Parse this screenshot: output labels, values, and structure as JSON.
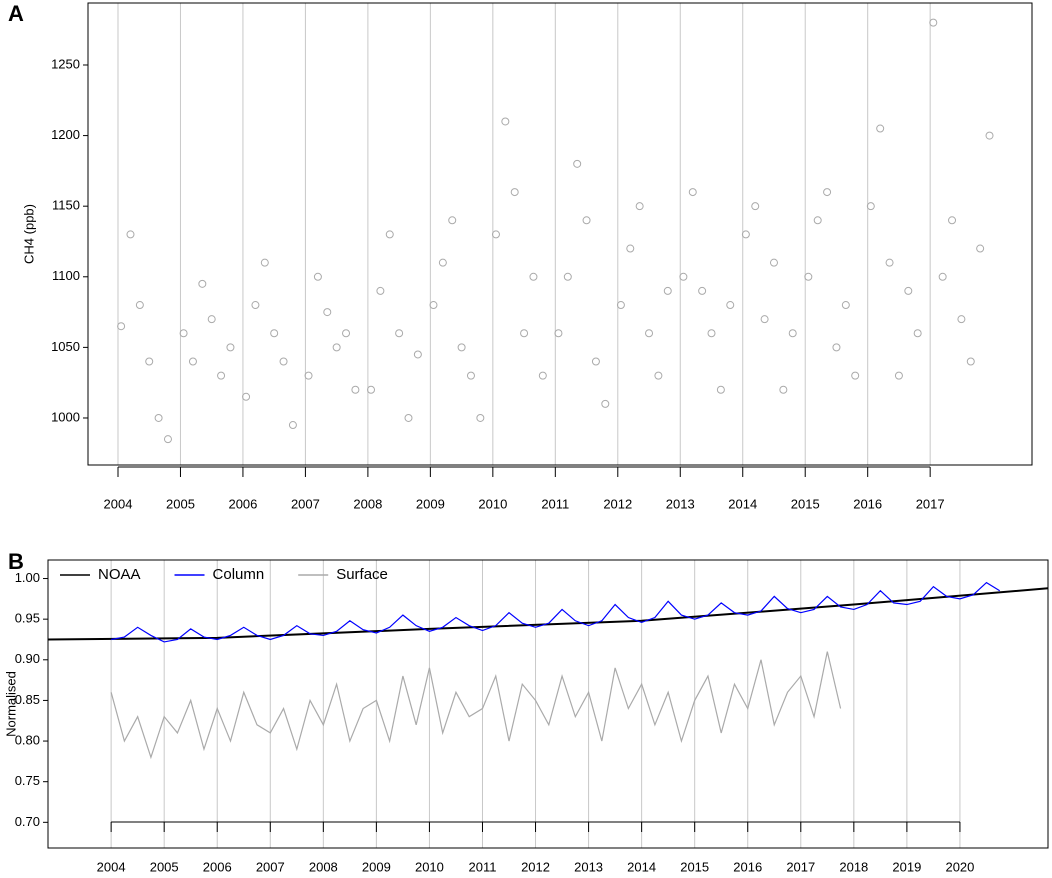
{
  "chart_data": [
    {
      "type": "scatter",
      "panel_label": "A",
      "y_label": "CH4 (ppb)",
      "color": "#aaaaaa",
      "grid": true,
      "xlim": [
        2003.52,
        2018.63
      ],
      "ylim": [
        966.7,
        1293.9
      ],
      "xticks": [
        2004,
        2005,
        2006,
        2007,
        2008,
        2009,
        2010,
        2011,
        2012,
        2013,
        2014,
        2015,
        2016,
        2017
      ],
      "yticks": [
        1000,
        1050,
        1100,
        1150,
        1200,
        1250
      ],
      "x": [
        2004.05,
        2004.2,
        2004.35,
        2004.5,
        2004.65,
        2004.8,
        2005.05,
        2005.2,
        2005.35,
        2005.5,
        2005.65,
        2005.8,
        2006.05,
        2006.2,
        2006.35,
        2006.5,
        2006.65,
        2006.8,
        2007.05,
        2007.2,
        2007.35,
        2007.5,
        2007.65,
        2007.8,
        2008.05,
        2008.2,
        2008.35,
        2008.5,
        2008.65,
        2008.8,
        2009.05,
        2009.2,
        2009.35,
        2009.5,
        2009.65,
        2009.8,
        2010.05,
        2010.2,
        2010.35,
        2010.5,
        2010.65,
        2010.8,
        2011.05,
        2011.2,
        2011.35,
        2011.5,
        2011.65,
        2011.8,
        2012.05,
        2012.2,
        2012.35,
        2012.5,
        2012.65,
        2012.8,
        2013.05,
        2013.2,
        2013.35,
        2013.5,
        2013.65,
        2013.8,
        2014.05,
        2014.2,
        2014.35,
        2014.5,
        2014.65,
        2014.8,
        2015.05,
        2015.2,
        2015.35,
        2015.5,
        2015.65,
        2015.8,
        2016.05,
        2016.2,
        2016.35,
        2016.5,
        2016.65,
        2016.8,
        2017.05,
        2017.2,
        2017.35,
        2017.5,
        2017.65,
        2017.8,
        2017.95
      ],
      "values": [
        1065,
        1130,
        1080,
        1040,
        1000,
        985,
        1060,
        1040,
        1095,
        1070,
        1030,
        1050,
        1015,
        1080,
        1110,
        1060,
        1040,
        995,
        1030,
        1100,
        1075,
        1050,
        1060,
        1020,
        1020,
        1090,
        1130,
        1060,
        1000,
        1045,
        1080,
        1110,
        1140,
        1050,
        1030,
        1000,
        1130,
        1210,
        1160,
        1060,
        1100,
        1030,
        1060,
        1100,
        1180,
        1140,
        1040,
        1010,
        1080,
        1120,
        1150,
        1060,
        1030,
        1090,
        1100,
        1160,
        1090,
        1060,
        1020,
        1080,
        1130,
        1150,
        1070,
        1110,
        1020,
        1060,
        1100,
        1140,
        1160,
        1050,
        1080,
        1030,
        1150,
        1205,
        1110,
        1030,
        1090,
        1060,
        1280,
        1100,
        1140,
        1070,
        1040,
        1120,
        1200
      ]
    },
    {
      "type": "line",
      "panel_label": "B",
      "y_label": "Normalised",
      "grid": true,
      "legend": "top-left",
      "xlim": [
        2002.81,
        2021.66
      ],
      "ylim": [
        0.6684,
        1.0228
      ],
      "xticks": [
        2004,
        2005,
        2006,
        2007,
        2008,
        2009,
        2010,
        2011,
        2012,
        2013,
        2014,
        2015,
        2016,
        2017,
        2018,
        2019,
        2020
      ],
      "yticks": [
        {
          "value": 0.7,
          "label": "0.70"
        },
        0.75,
        {
          "value": 0.8,
          "label": "0.80"
        },
        0.85,
        {
          "value": 0.9,
          "label": "0.90"
        },
        0.95,
        {
          "value": 1,
          "label": "1.00"
        }
      ],
      "series": [
        {
          "name": "NOAA",
          "color": "#000000",
          "x": [
            2002.81,
            2006,
            2010,
            2014,
            2018,
            2021.66
          ],
          "values": [
            0.925,
            0.927,
            0.938,
            0.948,
            0.968,
            0.988
          ]
        },
        {
          "name": "Column",
          "color": "#0000ff",
          "x": [
            2004,
            2004.25,
            2004.5,
            2004.75,
            2005,
            2005.25,
            2005.5,
            2005.75,
            2006,
            2006.25,
            2006.5,
            2006.75,
            2007,
            2007.25,
            2007.5,
            2007.75,
            2008,
            2008.25,
            2008.5,
            2008.75,
            2009,
            2009.25,
            2009.5,
            2009.75,
            2010,
            2010.25,
            2010.5,
            2010.75,
            2011,
            2011.25,
            2011.5,
            2011.75,
            2012,
            2012.25,
            2012.5,
            2012.75,
            2013,
            2013.25,
            2013.5,
            2013.75,
            2014,
            2014.25,
            2014.5,
            2014.75,
            2015,
            2015.25,
            2015.5,
            2015.75,
            2016,
            2016.25,
            2016.5,
            2016.75,
            2017,
            2017.25,
            2017.5,
            2017.75,
            2018,
            2018.25,
            2018.5,
            2018.75,
            2019,
            2019.25,
            2019.5,
            2019.75,
            2020,
            2020.25,
            2020.5,
            2020.75
          ],
          "values": [
            0.925,
            0.928,
            0.94,
            0.93,
            0.922,
            0.925,
            0.938,
            0.928,
            0.925,
            0.93,
            0.94,
            0.93,
            0.925,
            0.93,
            0.942,
            0.932,
            0.93,
            0.935,
            0.948,
            0.937,
            0.933,
            0.94,
            0.955,
            0.942,
            0.935,
            0.94,
            0.952,
            0.942,
            0.936,
            0.942,
            0.958,
            0.945,
            0.94,
            0.945,
            0.962,
            0.948,
            0.942,
            0.948,
            0.968,
            0.952,
            0.946,
            0.952,
            0.972,
            0.955,
            0.95,
            0.955,
            0.97,
            0.958,
            0.955,
            0.96,
            0.978,
            0.963,
            0.958,
            0.962,
            0.978,
            0.965,
            0.962,
            0.968,
            0.985,
            0.97,
            0.968,
            0.972,
            0.99,
            0.978,
            0.975,
            0.98,
            0.995,
            0.985
          ]
        },
        {
          "name": "Surface",
          "color": "#aaaaaa",
          "x": [
            2004,
            2004.25,
            2004.5,
            2004.75,
            2005,
            2005.25,
            2005.5,
            2005.75,
            2006,
            2006.25,
            2006.5,
            2006.75,
            2007,
            2007.25,
            2007.5,
            2007.75,
            2008,
            2008.25,
            2008.5,
            2008.75,
            2009,
            2009.25,
            2009.5,
            2009.75,
            2010,
            2010.25,
            2010.5,
            2010.75,
            2011,
            2011.25,
            2011.5,
            2011.75,
            2012,
            2012.25,
            2012.5,
            2012.75,
            2013,
            2013.25,
            2013.5,
            2013.75,
            2014,
            2014.25,
            2014.5,
            2014.75,
            2015,
            2015.25,
            2015.5,
            2015.75,
            2016,
            2016.25,
            2016.5,
            2016.75,
            2017,
            2017.25,
            2017.5,
            2017.75
          ],
          "values": [
            0.86,
            0.8,
            0.83,
            0.78,
            0.83,
            0.81,
            0.85,
            0.79,
            0.84,
            0.8,
            0.86,
            0.82,
            0.81,
            0.84,
            0.79,
            0.85,
            0.82,
            0.87,
            0.8,
            0.84,
            0.85,
            0.8,
            0.88,
            0.82,
            0.89,
            0.81,
            0.86,
            0.83,
            0.84,
            0.88,
            0.8,
            0.87,
            0.85,
            0.82,
            0.88,
            0.83,
            0.86,
            0.8,
            0.89,
            0.84,
            0.87,
            0.82,
            0.86,
            0.8,
            0.85,
            0.88,
            0.81,
            0.87,
            0.84,
            0.9,
            0.82,
            0.86,
            0.88,
            0.83,
            0.91,
            0.84
          ]
        }
      ]
    }
  ]
}
